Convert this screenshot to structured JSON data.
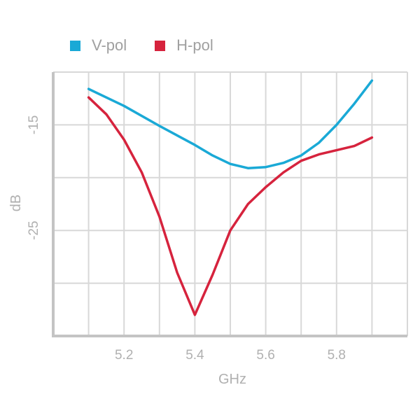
{
  "chart_data": {
    "type": "line",
    "xlabel": "GHz",
    "ylabel": "dB",
    "xlim": [
      5.0,
      6.0
    ],
    "ylim": [
      -35,
      -10
    ],
    "x_ticks": [
      {
        "value": 5.2,
        "label": "5.2"
      },
      {
        "value": 5.4,
        "label": "5.4"
      },
      {
        "value": 5.6,
        "label": "5.6"
      },
      {
        "value": 5.8,
        "label": "5.8"
      }
    ],
    "y_ticks": [
      {
        "value": -15,
        "label": "-15"
      },
      {
        "value": -25,
        "label": "-25"
      }
    ],
    "x_grid": [
      5.0,
      5.1,
      5.2,
      5.3,
      5.4,
      5.5,
      5.6,
      5.7,
      5.8,
      5.9,
      6.0
    ],
    "y_grid": [
      -10,
      -15,
      -20,
      -25,
      -30
    ],
    "grid": true,
    "legend": "top-left",
    "series": [
      {
        "name": "V-pol",
        "color": "#1aa9d6",
        "points": [
          [
            5.1,
            -11.6
          ],
          [
            5.2,
            -13.2
          ],
          [
            5.3,
            -15.1
          ],
          [
            5.4,
            -16.9
          ],
          [
            5.45,
            -17.9
          ],
          [
            5.5,
            -18.7
          ],
          [
            5.55,
            -19.1
          ],
          [
            5.6,
            -19.0
          ],
          [
            5.65,
            -18.6
          ],
          [
            5.7,
            -17.9
          ],
          [
            5.75,
            -16.7
          ],
          [
            5.8,
            -15.0
          ],
          [
            5.85,
            -13.0
          ],
          [
            5.9,
            -10.8
          ]
        ]
      },
      {
        "name": "H-pol",
        "color": "#d6233d",
        "points": [
          [
            5.1,
            -12.4
          ],
          [
            5.15,
            -14.0
          ],
          [
            5.2,
            -16.4
          ],
          [
            5.25,
            -19.5
          ],
          [
            5.3,
            -23.7
          ],
          [
            5.35,
            -29.0
          ],
          [
            5.4,
            -33.0
          ],
          [
            5.45,
            -29.2
          ],
          [
            5.5,
            -25.0
          ],
          [
            5.55,
            -22.5
          ],
          [
            5.6,
            -20.9
          ],
          [
            5.65,
            -19.5
          ],
          [
            5.7,
            -18.4
          ],
          [
            5.75,
            -17.8
          ],
          [
            5.8,
            -17.4
          ],
          [
            5.85,
            -17.0
          ],
          [
            5.9,
            -16.2
          ]
        ]
      }
    ]
  }
}
